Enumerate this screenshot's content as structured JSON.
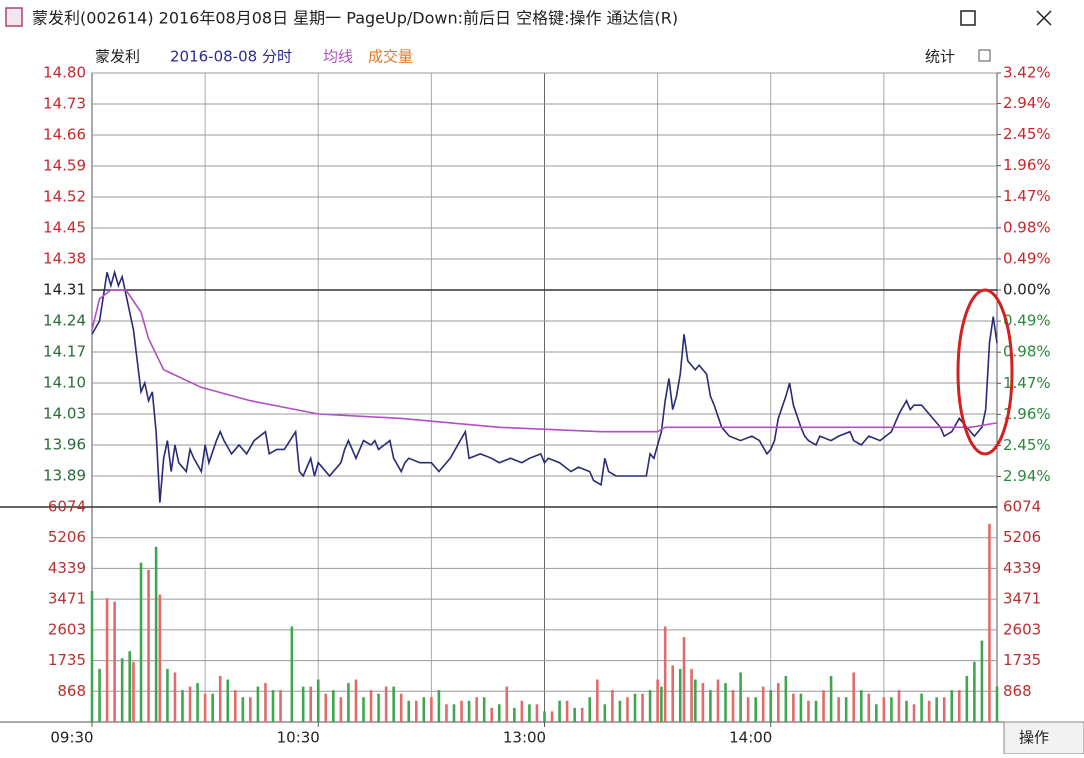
{
  "window": {
    "title": "蒙发利(002614) 2016年08月08日 星期一 PageUp/Down:前后日 空格键:操作 通达信(R)",
    "stats_button": "统计",
    "operate_button": "操作"
  },
  "chart_data": [
    {
      "type": "line",
      "title": "蒙发利",
      "subtitle": "2016-08-08 分时",
      "xlim": [
        0,
        240
      ],
      "xticks": [
        {
          "value": 0,
          "label": "09:30"
        },
        {
          "value": 60,
          "label": "10:30"
        },
        {
          "value": 120,
          "label": "13:00"
        },
        {
          "value": 180,
          "label": "14:00"
        }
      ],
      "ylim": [
        13.82,
        14.8
      ],
      "yticks": [
        {
          "value": 14.8,
          "label": "14.80"
        },
        14.73,
        14.66,
        14.59,
        14.52,
        14.45,
        14.38,
        14.31,
        14.24,
        14.17,
        {
          "value": 14.1,
          "label": "14.10"
        },
        14.03,
        13.96,
        13.89
      ],
      "y2lim": [
        -3.42,
        3.42
      ],
      "y2ticks": [
        {
          "value": 3.42,
          "label": "3.42%"
        },
        {
          "value": 2.94,
          "label": "2.94%"
        },
        {
          "value": 2.45,
          "label": "2.45%"
        },
        {
          "value": 1.96,
          "label": "1.96%"
        },
        {
          "value": 1.47,
          "label": "1.47%"
        },
        {
          "value": 0.98,
          "label": "0.98%"
        },
        {
          "value": 0.49,
          "label": "0.49%"
        },
        {
          "value": 0,
          "label": "0.00%"
        },
        {
          "value": -0.49,
          "label": "0.49%"
        },
        {
          "value": -0.98,
          "label": "0.98%"
        },
        {
          "value": -1.47,
          "label": "1.47%"
        },
        {
          "value": -1.96,
          "label": "1.96%"
        },
        {
          "value": -2.45,
          "label": "2.45%"
        },
        {
          "value": -2.94,
          "label": "2.94%"
        }
      ],
      "grid": true,
      "series": [
        {
          "color": "#2a2a78",
          "x": [
            0,
            2,
            4,
            5,
            6,
            7,
            8,
            9,
            11,
            13,
            14,
            15,
            16,
            17,
            18,
            19,
            20,
            21,
            22,
            23,
            25,
            26,
            27,
            29,
            30,
            31,
            33,
            34,
            35,
            37,
            38,
            39,
            41,
            43,
            46,
            47,
            49,
            51,
            54,
            55,
            56,
            58,
            59,
            60,
            62,
            63,
            64,
            66,
            67,
            68,
            70,
            71,
            72,
            74,
            75,
            76,
            79,
            80,
            82,
            83,
            84,
            87,
            90,
            92,
            95,
            99,
            100,
            103,
            106,
            108,
            111,
            114,
            116,
            119,
            120,
            121,
            124,
            127,
            129,
            132,
            133,
            135,
            136,
            137,
            139,
            141,
            144,
            145,
            147,
            148,
            149,
            151,
            152,
            153,
            154,
            155,
            156,
            157,
            158,
            160,
            161,
            163,
            164,
            165,
            167,
            169,
            172,
            175,
            177,
            179,
            180,
            181,
            182,
            184,
            185,
            186,
            188,
            189,
            190,
            192,
            193,
            196,
            198,
            201,
            202,
            204,
            206,
            209,
            212,
            214,
            216,
            217,
            218,
            220,
            222,
            225,
            226,
            228,
            230,
            233,
            234,
            236,
            237,
            238,
            239,
            240
          ],
          "values": [
            14.21,
            14.24,
            14.35,
            14.32,
            14.35,
            14.32,
            14.34,
            14.3,
            14.22,
            14.08,
            14.1,
            14.06,
            14.08,
            13.99,
            13.83,
            13.93,
            13.97,
            13.9,
            13.96,
            13.92,
            13.9,
            13.95,
            13.93,
            13.9,
            13.96,
            13.92,
            13.97,
            13.99,
            13.97,
            13.94,
            13.95,
            13.96,
            13.94,
            13.97,
            13.99,
            13.94,
            13.95,
            13.95,
            13.99,
            13.9,
            13.89,
            13.93,
            13.89,
            13.92,
            13.9,
            13.89,
            13.9,
            13.92,
            13.95,
            13.97,
            13.93,
            13.95,
            13.97,
            13.96,
            13.97,
            13.95,
            13.97,
            13.93,
            13.9,
            13.92,
            13.93,
            13.92,
            13.92,
            13.9,
            13.93,
            13.99,
            13.93,
            13.94,
            13.93,
            13.92,
            13.93,
            13.92,
            13.93,
            13.94,
            13.92,
            13.93,
            13.92,
            13.9,
            13.91,
            13.9,
            13.88,
            13.87,
            13.93,
            13.9,
            13.89,
            13.89,
            13.89,
            13.89,
            13.89,
            13.94,
            13.93,
            13.99,
            14.06,
            14.11,
            14.04,
            14.07,
            14.12,
            14.21,
            14.15,
            14.13,
            14.14,
            14.12,
            14.07,
            14.05,
            14.0,
            13.98,
            13.97,
            13.98,
            13.97,
            13.94,
            13.95,
            13.97,
            14.02,
            14.07,
            14.1,
            14.05,
            14.0,
            13.98,
            13.97,
            13.96,
            13.98,
            13.97,
            13.98,
            13.99,
            13.97,
            13.96,
            13.98,
            13.97,
            13.99,
            14.03,
            14.06,
            14.04,
            14.05,
            14.05,
            14.03,
            14.0,
            13.98,
            13.99,
            14.02,
            13.99,
            13.98,
            14.0,
            14.04,
            14.19,
            14.25,
            14.19
          ]
        },
        {
          "name": "均线",
          "color": "#b24fc4",
          "x": [
            0,
            2,
            5,
            9,
            13,
            15,
            19,
            29,
            42,
            60,
            82,
            108,
            135,
            150,
            152,
            161,
            188,
            214,
            233,
            240
          ],
          "values": [
            14.22,
            14.29,
            14.31,
            14.31,
            14.26,
            14.2,
            14.13,
            14.09,
            14.06,
            14.03,
            14.02,
            14.0,
            13.99,
            13.99,
            14.0,
            14.0,
            14.0,
            14.0,
            14.0,
            14.01
          ]
        }
      ]
    },
    {
      "type": "bar",
      "title": "成交量",
      "title_color": "#e0782a",
      "xlim": [
        0,
        240
      ],
      "ylim": [
        0,
        6074
      ],
      "yticks": [
        6074,
        5206,
        4339,
        3471,
        2603,
        1735,
        868
      ],
      "grid": true,
      "series": [
        {
          "color": "#e26a6a",
          "x": [
            4,
            6,
            11,
            15,
            18,
            22,
            26,
            30,
            34,
            38,
            42,
            46,
            50,
            58,
            62,
            66,
            70,
            74,
            78,
            82,
            86,
            90,
            94,
            98,
            102,
            106,
            110,
            114,
            118,
            122,
            126,
            130,
            134,
            138,
            142,
            146,
            150,
            152,
            154,
            157,
            159,
            162,
            166,
            170,
            174,
            178,
            182,
            186,
            190,
            194,
            198,
            202,
            206,
            210,
            214,
            218,
            222,
            226,
            230,
            238
          ],
          "values": [
            3500,
            3400,
            1700,
            4300,
            3600,
            1400,
            1000,
            800,
            1300,
            900,
            700,
            1100,
            900,
            1000,
            800,
            700,
            1200,
            900,
            1000,
            800,
            600,
            700,
            500,
            600,
            700,
            400,
            1000,
            600,
            500,
            300,
            600,
            400,
            1200,
            900,
            700,
            800,
            1200,
            2700,
            1600,
            2400,
            1500,
            1100,
            1200,
            900,
            700,
            1000,
            1100,
            800,
            600,
            900,
            700,
            1400,
            800,
            700,
            900,
            500,
            600,
            700,
            900,
            5600
          ]
        },
        {
          "color": "#3fa650",
          "x": [
            0,
            2,
            8,
            10,
            13,
            17,
            20,
            24,
            28,
            32,
            36,
            40,
            44,
            48,
            53,
            56,
            60,
            64,
            68,
            72,
            76,
            80,
            84,
            88,
            92,
            96,
            100,
            104,
            108,
            112,
            116,
            120,
            124,
            128,
            132,
            136,
            140,
            144,
            148,
            151,
            156,
            160,
            164,
            168,
            172,
            176,
            180,
            184,
            188,
            192,
            196,
            200,
            204,
            208,
            212,
            216,
            220,
            224,
            228,
            232,
            234,
            236,
            240
          ],
          "values": [
            3700,
            1500,
            1800,
            2000,
            4500,
            4950,
            1500,
            900,
            1100,
            800,
            1200,
            700,
            1000,
            900,
            2700,
            1000,
            1200,
            900,
            1100,
            700,
            800,
            1000,
            600,
            700,
            900,
            500,
            600,
            700,
            500,
            400,
            500,
            300,
            600,
            400,
            700,
            500,
            600,
            800,
            900,
            1000,
            1500,
            1200,
            900,
            1100,
            1400,
            700,
            900,
            1300,
            800,
            600,
            1300,
            700,
            900,
            500,
            700,
            600,
            800,
            700,
            900,
            1300,
            1700,
            2300,
            1000
          ]
        }
      ]
    }
  ]
}
